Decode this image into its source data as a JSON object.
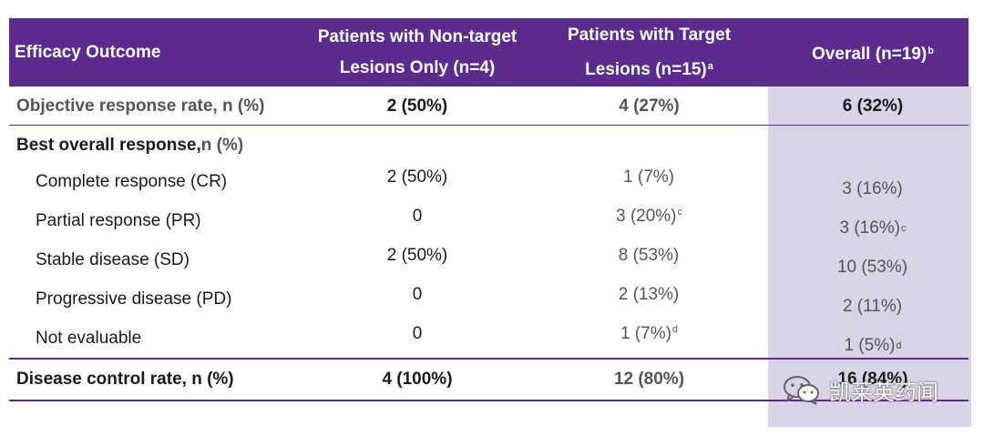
{
  "table": {
    "header": {
      "outcome": "Efficacy Outcome",
      "col1_line1": "Patients with Non-target",
      "col1_line2": "Lesions Only (n=4)",
      "col2_line1": "Patients with Target",
      "col2_line2": "Lesions (n=15)",
      "col2_fn": "a",
      "col3": "Overall (n=19)",
      "col3_fn": "b"
    },
    "orr": {
      "label": "Objective response rate, n (%)",
      "v1": "2 (50%)",
      "v2": "4 (27%)",
      "v3": "6 (32%)"
    },
    "best": {
      "label": "Best overall response,",
      "unit": " n (%)"
    },
    "rows": [
      {
        "label": "Complete response (CR)",
        "v1": "2 (50%)",
        "v2": "1 (7%)",
        "v2_fn": "",
        "v3": "3 (16%)",
        "v3_fn": ""
      },
      {
        "label": "Partial response (PR)",
        "v1": "0",
        "v2": "3 (20%)",
        "v2_fn": "c",
        "v3": "3 (16%)",
        "v3_fn": "c"
      },
      {
        "label": "Stable disease (SD)",
        "v1": "2 (50%)",
        "v2": "8 (53%)",
        "v2_fn": "",
        "v3": "10 (53%)",
        "v3_fn": ""
      },
      {
        "label": "Progressive disease (PD)",
        "v1": "0",
        "v2": "2 (13%)",
        "v2_fn": "",
        "v3": "2 (11%)",
        "v3_fn": ""
      },
      {
        "label": "Not evaluable",
        "v1": "0",
        "v2": "1 (7%)",
        "v2_fn": "d",
        "v3": "1 (5%)",
        "v3_fn": "d"
      }
    ],
    "dcr": {
      "label": "Disease control rate, n (%)",
      "v1": "4 (100%)",
      "v2": "12 (80%)",
      "v3": "16 (84%)"
    }
  },
  "watermark": {
    "text": "凯莱英药闻",
    "icon": "wechat-icon"
  },
  "colors": {
    "header_bg": "#5b2b8e",
    "overall_shade": "#d8d3e6",
    "rule": "#5b2b8e"
  }
}
